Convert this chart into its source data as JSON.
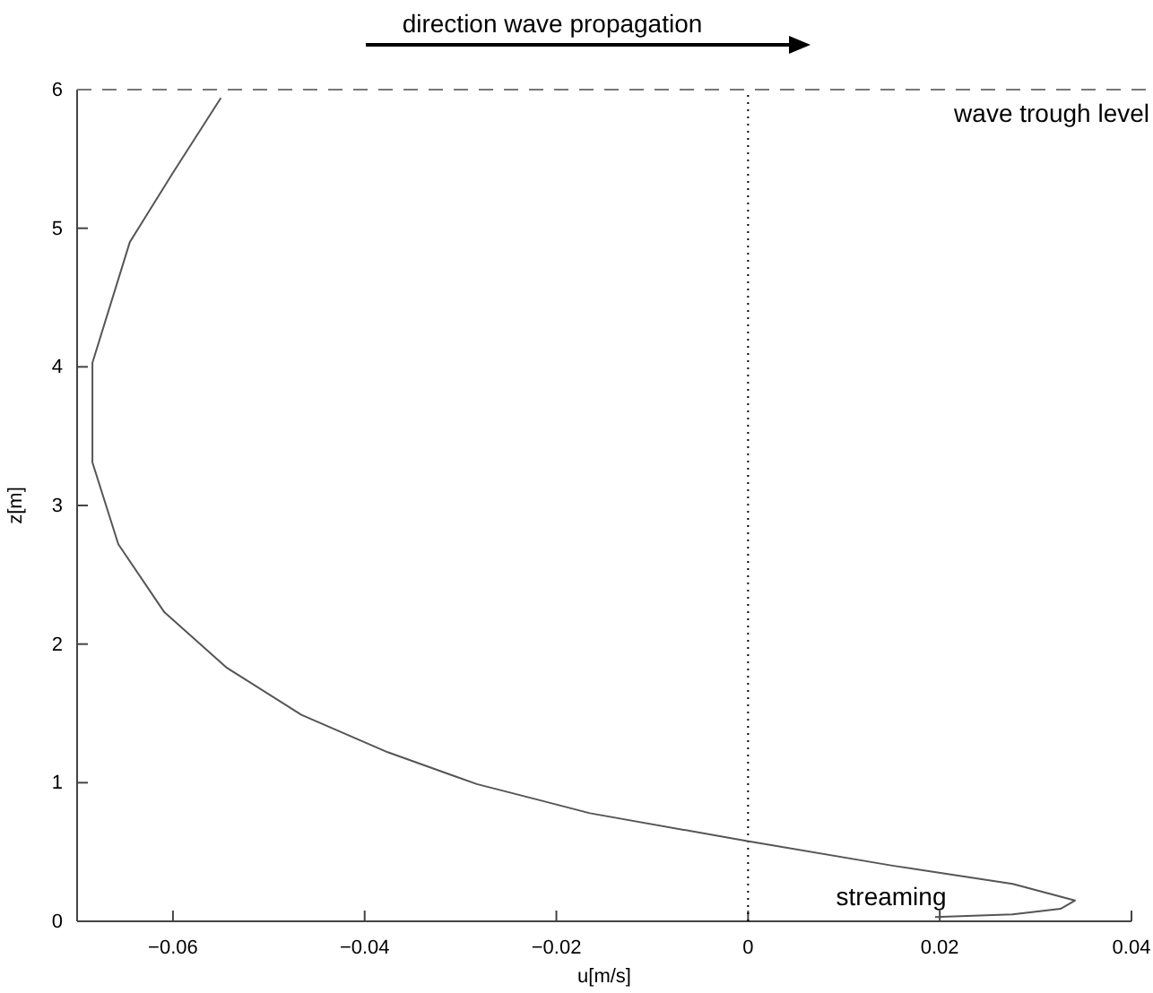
{
  "chart_data": {
    "type": "line",
    "title": "direction wave propagation",
    "xlabel": "u[m/s]",
    "ylabel": "z[m]",
    "xlim": [
      -0.07,
      0.04
    ],
    "xticks": [
      -0.06,
      -0.04,
      -0.02,
      0,
      0.02,
      0.04
    ],
    "ylim": [
      0,
      6
    ],
    "yticks": [
      0,
      1,
      2,
      3,
      4,
      5,
      6
    ],
    "series": [
      {
        "color": "#555555",
        "x": [
          -0.055,
          -0.06,
          -0.0645,
          -0.0684,
          -0.0684,
          -0.0657,
          -0.0609,
          -0.0544,
          -0.0466,
          -0.0376,
          -0.0283,
          -0.0221,
          -0.0165,
          -0.0002,
          0.0152,
          0.0276,
          0.0341,
          0.0326,
          0.0276,
          0.0195
        ],
        "values": [
          5.94,
          5.4,
          4.9,
          4.03,
          3.31,
          2.72,
          2.23,
          1.83,
          1.49,
          1.22,
          0.99,
          0.88,
          0.78,
          0.58,
          0.4,
          0.27,
          0.15,
          0.09,
          0.05,
          0.03
        ]
      }
    ],
    "ref_lines": [
      {
        "axis": "y",
        "value": 6,
        "label": "wave trough level",
        "color": "#777777",
        "line_style": "dashed"
      },
      {
        "axis": "x",
        "value": 0,
        "color": "#000000",
        "line_style": "dotted"
      }
    ],
    "annotations": [
      "streaming"
    ],
    "line_style": "solid"
  }
}
